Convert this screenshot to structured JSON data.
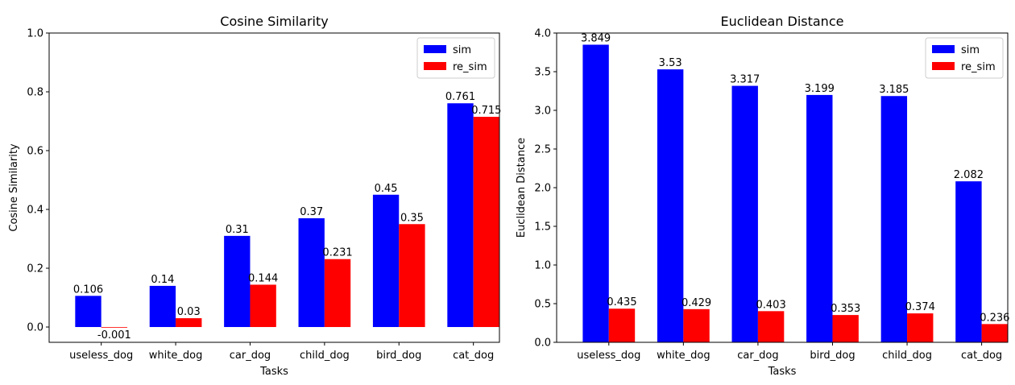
{
  "chart_data": [
    {
      "type": "bar",
      "title": "Cosine Similarity",
      "xlabel": "Tasks",
      "ylabel": "Cosine Similarity",
      "categories": [
        "useless_dog",
        "white_dog",
        "car_dog",
        "child_dog",
        "bird_dog",
        "cat_dog"
      ],
      "series": [
        {
          "name": "sim",
          "color": "#0000ff",
          "values": [
            0.106,
            0.14,
            0.31,
            0.37,
            0.45,
            0.761
          ],
          "labels": [
            "0.106",
            "0.14",
            "0.31",
            "0.37",
            "0.45",
            "0.761"
          ]
        },
        {
          "name": "re_sim",
          "color": "#ff0000",
          "values": [
            -0.001,
            0.03,
            0.144,
            0.231,
            0.35,
            0.715
          ],
          "labels": [
            "-0.001",
            "0.03",
            "0.144",
            "0.231",
            "0.35",
            "0.715"
          ]
        }
      ],
      "ylim": [
        -0.052,
        1.0
      ],
      "yticks": [
        "0.0",
        "0.2",
        "0.4",
        "0.6",
        "0.8",
        "1.0"
      ],
      "grid": false,
      "legend_placement": "top-right"
    },
    {
      "type": "bar",
      "title": "Euclidean Distance",
      "xlabel": "Tasks",
      "ylabel": "Euclidean Distance",
      "categories": [
        "useless_dog",
        "white_dog",
        "car_dog",
        "bird_dog",
        "child_dog",
        "cat_dog"
      ],
      "series": [
        {
          "name": "sim",
          "color": "#0000ff",
          "values": [
            3.849,
            3.53,
            3.317,
            3.199,
            3.185,
            2.082
          ],
          "labels": [
            "3.849",
            "3.53",
            "3.317",
            "3.199",
            "3.185",
            "2.082"
          ]
        },
        {
          "name": "re_sim",
          "color": "#ff0000",
          "values": [
            0.435,
            0.429,
            0.403,
            0.353,
            0.374,
            0.236
          ],
          "labels": [
            "0.435",
            "0.429",
            "0.403",
            "0.353",
            "0.374",
            "0.236"
          ]
        }
      ],
      "ylim": [
        0.0,
        4.0
      ],
      "yticks": [
        "0.0",
        "0.5",
        "1.0",
        "1.5",
        "2.0",
        "2.5",
        "3.0",
        "3.5",
        "4.0"
      ],
      "grid": false,
      "legend_placement": "top-right"
    }
  ]
}
